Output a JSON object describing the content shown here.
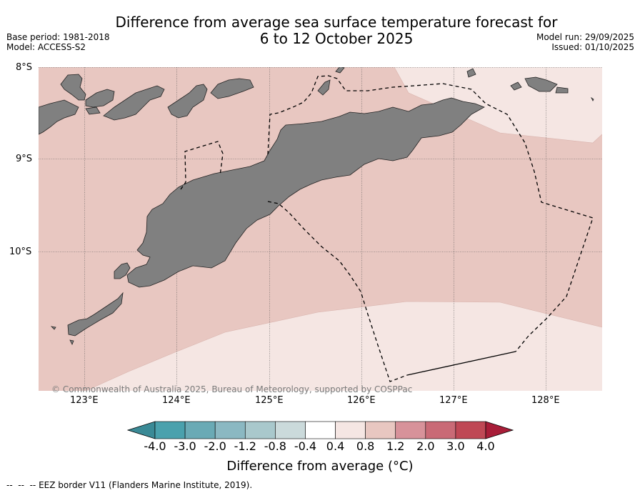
{
  "title": {
    "line1": "Difference from average sea surface temperature forecast for",
    "line2": "6 to 12 October 2025"
  },
  "meta": {
    "base_period": "Base period: 1981-2018",
    "model": "Model: ACCESS-S2",
    "model_run": "Model run: 29/09/2025",
    "issued": "Issued: 01/10/2025"
  },
  "map": {
    "lat_labels": [
      "8°S",
      "9°S",
      "10°S"
    ],
    "lon_labels": [
      "123°E",
      "124°E",
      "125°E",
      "126°E",
      "127°E",
      "128°E"
    ],
    "copyright": "© Commonwealth of Australia 2025, Bureau of Meteorology, supported by COSPPac",
    "colors": {
      "land": "#808080",
      "anomaly_0p8_to_1p2": "#e8c7c1",
      "anomaly_0p4_to_0p8": "#f5e6e3"
    }
  },
  "colorbar": {
    "title": "Difference from average (°C)",
    "tick_labels": [
      "-4.0",
      "-3.0",
      "-2.0",
      "-1.2",
      "-0.8",
      "-0.4",
      "0.4",
      "0.8",
      "1.2",
      "2.0",
      "3.0",
      "4.0"
    ],
    "colors": [
      "#3a8a96",
      "#4aa1ad",
      "#6aaab5",
      "#8bb8c2",
      "#a9c8cc",
      "#cbdadb",
      "#ffffff",
      "#f5e6e3",
      "#e8c7c1",
      "#d7929a",
      "#c96a76",
      "#bf4855",
      "#a81d38"
    ]
  },
  "legend": {
    "eez_note": "EEZ border V11 (Flanders Marine Institute, 2019)."
  }
}
